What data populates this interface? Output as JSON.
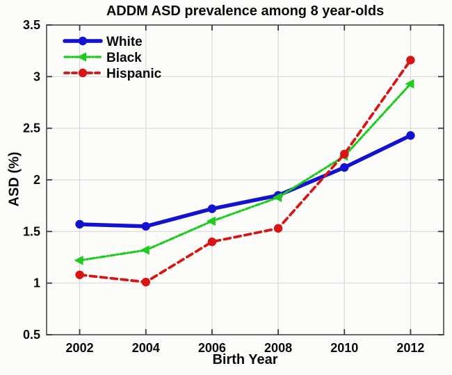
{
  "chart_data": {
    "type": "line",
    "title": "ADDM ASD prevalence among 8 year-olds",
    "xlabel": "Birth Year",
    "ylabel": "ASD (%)",
    "x": [
      2002,
      2004,
      2006,
      2008,
      2010,
      2012
    ],
    "series": [
      {
        "name": "White",
        "color": "#1212d0",
        "line": "solid",
        "marker": "circle",
        "width": 5.5,
        "values": [
          1.57,
          1.55,
          1.72,
          1.85,
          2.12,
          2.43
        ]
      },
      {
        "name": "Black",
        "color": "#1ecb1e",
        "line": "dash-dot",
        "marker": "triangle-left",
        "width": 3.2,
        "values": [
          1.22,
          1.32,
          1.6,
          1.83,
          2.23,
          2.93
        ]
      },
      {
        "name": "Hispanic",
        "color": "#d81414",
        "line": "dashed",
        "marker": "circle",
        "width": 3.8,
        "values": [
          1.08,
          1.01,
          1.4,
          1.53,
          2.25,
          3.16
        ]
      }
    ],
    "xlim": [
      2001,
      2013
    ],
    "ylim": [
      0.5,
      3.5
    ],
    "xticks": [
      2002,
      2004,
      2006,
      2008,
      2010,
      2012
    ],
    "yticks": [
      0.5,
      1,
      1.5,
      2,
      2.5,
      3,
      3.5
    ],
    "grid": true,
    "legend_position": "top-left"
  }
}
